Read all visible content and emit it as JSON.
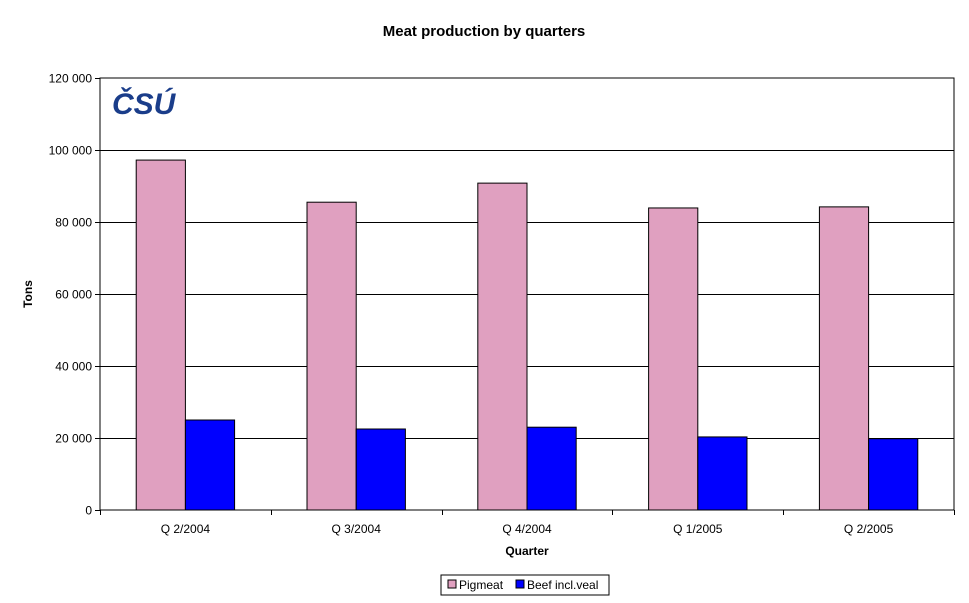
{
  "chart_data": {
    "type": "bar",
    "title": "Meat production by quarters",
    "xlabel": "Quarter",
    "ylabel": "Tons",
    "categories": [
      "Q 2/2004",
      "Q 3/2004",
      "Q 4/2004",
      "Q 1/2005",
      "Q 2/2005"
    ],
    "series": [
      {
        "name": "Pigmeat",
        "color": "#e0a0c0",
        "values": [
          97200,
          85500,
          90800,
          83900,
          84200
        ]
      },
      {
        "name": "Beef incl.veal",
        "color": "#0000ff",
        "values": [
          25000,
          22500,
          23000,
          20300,
          19800
        ]
      }
    ],
    "ylim": [
      0,
      120000
    ],
    "yticks": [
      0,
      20000,
      40000,
      60000,
      80000,
      100000,
      120000
    ],
    "ytick_labels": [
      "0",
      "20 000",
      "40 000",
      "60 000",
      "80 000",
      "100 000",
      "120 000"
    ],
    "grid": true,
    "legend_position": "bottom"
  },
  "logo": {
    "text": "ČSÚ",
    "color": "#1a3d8a"
  }
}
